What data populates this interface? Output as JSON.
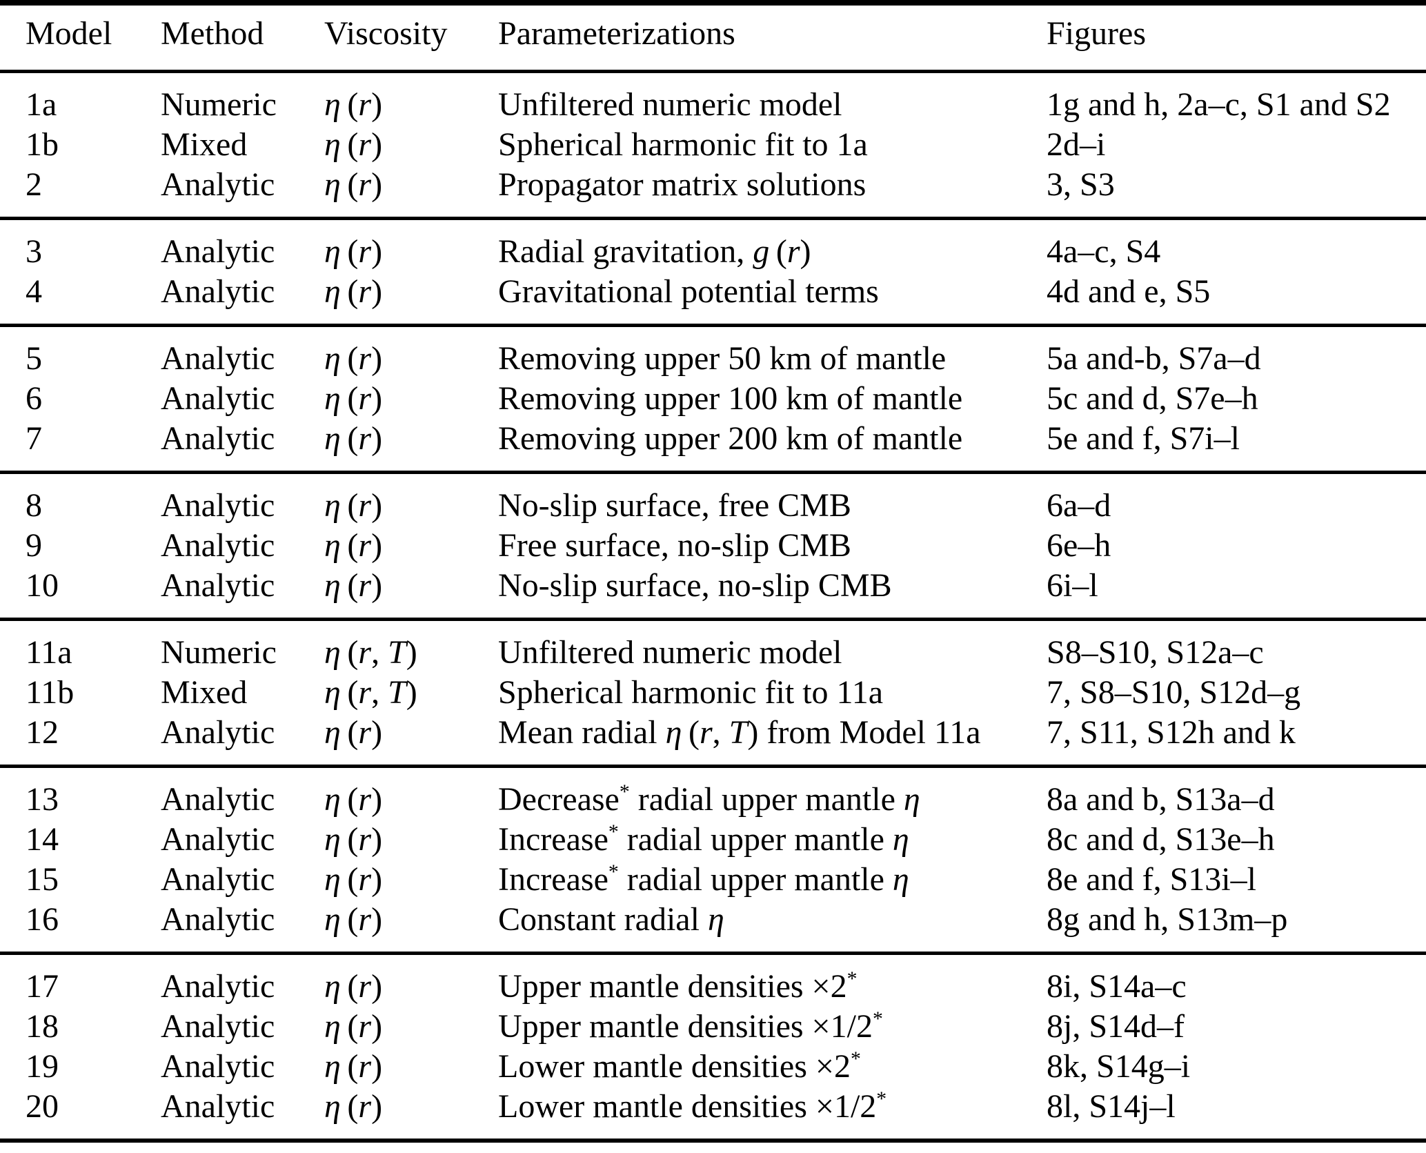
{
  "colors": {
    "text": "#000000",
    "background": "#ffffff",
    "rules": "#000000"
  },
  "table": {
    "columns": [
      "Model",
      "Method",
      "Viscosity",
      "Parameterizations",
      "Figures"
    ],
    "groups": [
      {
        "rows": [
          {
            "model": "1a",
            "method": "Numeric",
            "viscosity": "_η_ (_r_)",
            "parameterization": "Unfiltered numeric model",
            "figures": "1g and h, 2a–c, S1 and S2"
          },
          {
            "model": "1b",
            "method": "Mixed",
            "viscosity": "_η_ (_r_)",
            "parameterization": "Spherical harmonic fit to 1a",
            "figures": "2d–i"
          },
          {
            "model": "2",
            "method": "Analytic",
            "viscosity": "_η_ (_r_)",
            "parameterization": "Propagator matrix solutions",
            "figures": "3, S3"
          }
        ]
      },
      {
        "rows": [
          {
            "model": "3",
            "method": "Analytic",
            "viscosity": "_η_ (_r_)",
            "parameterization": "Radial gravitation, _g_ (_r_)",
            "figures": "4a–c, S4"
          },
          {
            "model": "4",
            "method": "Analytic",
            "viscosity": "_η_ (_r_)",
            "parameterization": "Gravitational potential terms",
            "figures": "4d and e, S5"
          }
        ]
      },
      {
        "rows": [
          {
            "model": "5",
            "method": "Analytic",
            "viscosity": "_η_ (_r_)",
            "parameterization": "Removing upper 50 km of mantle",
            "figures": "5a and-b, S7a–d"
          },
          {
            "model": "6",
            "method": "Analytic",
            "viscosity": "_η_ (_r_)",
            "parameterization": "Removing upper 100 km of mantle",
            "figures": "5c and d, S7e–h"
          },
          {
            "model": "7",
            "method": "Analytic",
            "viscosity": "_η_ (_r_)",
            "parameterization": "Removing upper 200 km of mantle",
            "figures": "5e and f, S7i–l"
          }
        ]
      },
      {
        "rows": [
          {
            "model": "8",
            "method": "Analytic",
            "viscosity": "_η_ (_r_)",
            "parameterization": "No-slip surface, free CMB",
            "figures": "6a–d"
          },
          {
            "model": "9",
            "method": "Analytic",
            "viscosity": "_η_ (_r_)",
            "parameterization": "Free surface, no-slip CMB",
            "figures": "6e–h"
          },
          {
            "model": "10",
            "method": "Analytic",
            "viscosity": "_η_ (_r_)",
            "parameterization": "No-slip surface, no-slip CMB",
            "figures": "6i–l"
          }
        ]
      },
      {
        "rows": [
          {
            "model": "11a",
            "method": "Numeric",
            "viscosity": "_η_ (_r_, _T_)",
            "parameterization": "Unfiltered numeric model",
            "figures": "S8–S10, S12a–c"
          },
          {
            "model": "11b",
            "method": "Mixed",
            "viscosity": "_η_ (_r_, _T_)",
            "parameterization": "Spherical harmonic fit to 11a",
            "figures": "7, S8–S10, S12d–g"
          },
          {
            "model": "12",
            "method": "Analytic",
            "viscosity": "_η_ (_r_)",
            "parameterization": "Mean radial _η_ (_r_, _T_) from Model 11a",
            "figures": "7, S11, S12h and k"
          }
        ]
      },
      {
        "rows": [
          {
            "model": "13",
            "method": "Analytic",
            "viscosity": "_η_ (_r_)",
            "parameterization": "Decrease^{*} radial upper mantle _η_",
            "figures": "8a and b, S13a–d"
          },
          {
            "model": "14",
            "method": "Analytic",
            "viscosity": "_η_ (_r_)",
            "parameterization": "Increase^{*} radial upper mantle _η_",
            "figures": "8c and d, S13e–h"
          },
          {
            "model": "15",
            "method": "Analytic",
            "viscosity": "_η_ (_r_)",
            "parameterization": "Increase^{*} radial upper mantle _η_",
            "figures": "8e and f, S13i–l"
          },
          {
            "model": "16",
            "method": "Analytic",
            "viscosity": "_η_ (_r_)",
            "parameterization": "Constant radial _η_",
            "figures": "8g and h, S13m–p"
          }
        ]
      },
      {
        "rows": [
          {
            "model": "17",
            "method": "Analytic",
            "viscosity": "_η_ (_r_)",
            "parameterization": "Upper mantle densities ×2^{*}",
            "figures": "8i, S14a–c"
          },
          {
            "model": "18",
            "method": "Analytic",
            "viscosity": "_η_ (_r_)",
            "parameterization": "Upper mantle densities ×1/2^{*}",
            "figures": "8j, S14d–f"
          },
          {
            "model": "19",
            "method": "Analytic",
            "viscosity": "_η_ (_r_)",
            "parameterization": "Lower mantle densities ×2^{*}",
            "figures": "8k, S14g–i"
          },
          {
            "model": "20",
            "method": "Analytic",
            "viscosity": "_η_ (_r_)",
            "parameterization": "Lower mantle densities ×1/2^{*}",
            "figures": "8l, S14j–l"
          }
        ]
      }
    ]
  }
}
